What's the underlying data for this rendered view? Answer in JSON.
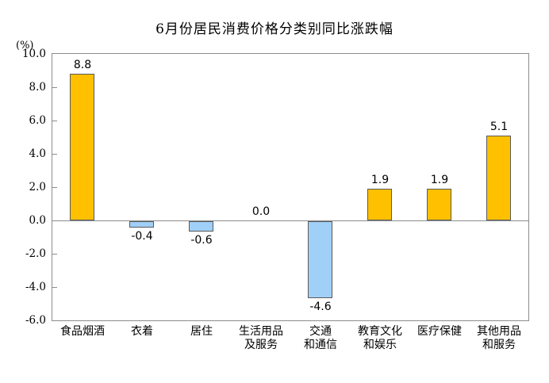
{
  "chart_data": {
    "type": "bar",
    "title": "6月份居民消费价格分类别同比涨跌幅",
    "unit_label": "(%)",
    "categories": [
      [
        "食品烟酒"
      ],
      [
        "衣着"
      ],
      [
        "居住"
      ],
      [
        "生活用品",
        "及服务"
      ],
      [
        "交通",
        "和通信"
      ],
      [
        "教育文化",
        "和娱乐"
      ],
      [
        "医疗保健"
      ],
      [
        "其他用品",
        "和服务"
      ]
    ],
    "values": [
      8.8,
      -0.4,
      -0.6,
      0.0,
      -4.6,
      1.9,
      1.9,
      5.1
    ],
    "value_labels": [
      "8.8",
      "-0.4",
      "-0.6",
      "0.0",
      "-4.6",
      "1.9",
      "1.9",
      "5.1"
    ],
    "ylim": [
      -6.0,
      10.0
    ],
    "ytick_step": 2.0,
    "ytick_labels": [
      "10.0",
      "8.0",
      "6.0",
      "4.0",
      "2.0",
      "0.0",
      "-2.0",
      "-4.0",
      "-6.0"
    ],
    "xlabel": "",
    "ylabel": "(%)",
    "grid": false,
    "legend": false,
    "colors": {
      "positive_bar": "#FFC000",
      "negative_bar": "#A0CFF8",
      "bar_border": "#5a5a5a",
      "axis": "#8c8c8c",
      "text": "#000000"
    }
  }
}
